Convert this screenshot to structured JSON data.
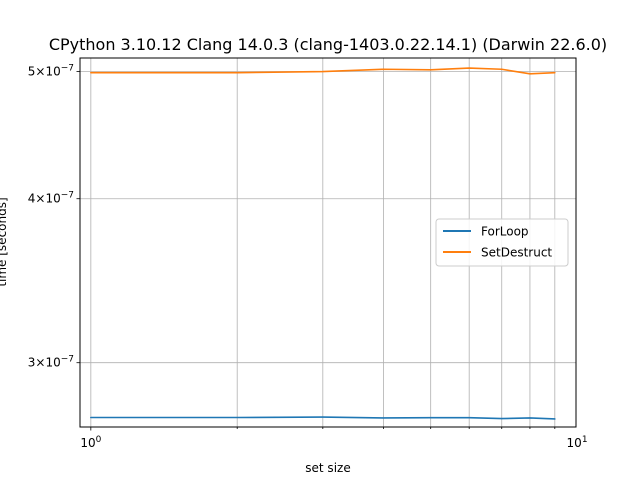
{
  "chart_data": {
    "type": "line",
    "title": "CPython 3.10.12 Clang 14.0.3 (clang-1403.0.22.14.1) (Darwin 22.6.0)",
    "xlabel": "set size",
    "ylabel": "time [seconds]",
    "xscale": "log",
    "yscale": "log",
    "xlim": [
      0.95,
      9.95
    ],
    "ylim": [
      2.68e-07,
      5.12e-07
    ],
    "grid": true,
    "legend_position": "center-right",
    "x_major_ticks": [
      {
        "value": 1,
        "label_base": "10",
        "label_exp": "0"
      },
      {
        "value": 10,
        "label_base": "10",
        "label_exp": "1"
      }
    ],
    "x_minor_ticks": [
      2,
      3,
      4,
      5,
      6,
      7,
      8,
      9
    ],
    "y_ticks": [
      {
        "value": 3e-07,
        "label_base": "3×10",
        "label_exp": "−7"
      },
      {
        "value": 4e-07,
        "label_base": "4×10",
        "label_exp": "−7"
      },
      {
        "value": 5e-07,
        "label_base": "5×10",
        "label_exp": "−7"
      }
    ],
    "x": [
      1,
      2,
      3,
      4,
      5,
      6,
      7,
      8,
      9
    ],
    "series": [
      {
        "name": "ForLoop",
        "color": "#1f77b4",
        "values": [
          2.725e-07,
          2.725e-07,
          2.727e-07,
          2.723e-07,
          2.724e-07,
          2.724e-07,
          2.72e-07,
          2.723e-07,
          2.718e-07
        ]
      },
      {
        "name": "SetDestruct",
        "color": "#ff7f0e",
        "values": [
          4.99e-07,
          4.99e-07,
          5e-07,
          5.02e-07,
          5.015e-07,
          5.03e-07,
          5.02e-07,
          4.98e-07,
          4.99e-07
        ]
      }
    ]
  }
}
